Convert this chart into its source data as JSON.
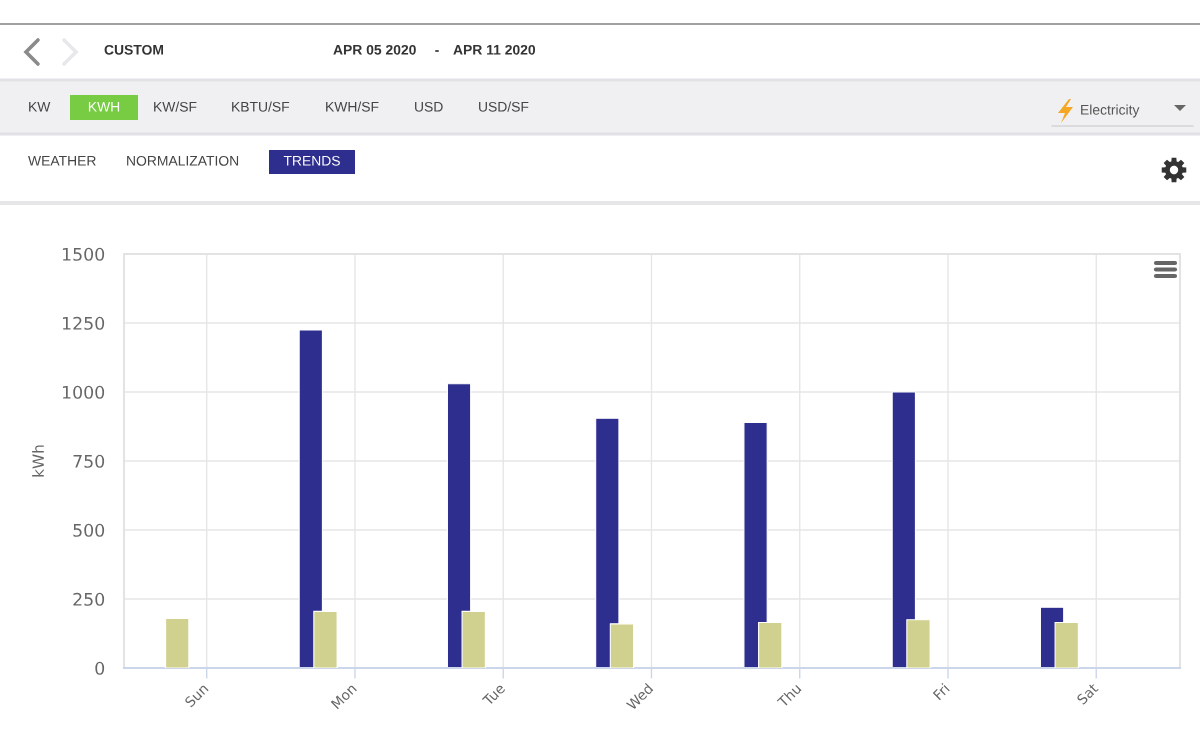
{
  "chart_data": {
    "type": "bar",
    "ylabel": "kWh",
    "categories": [
      "Sun",
      "Mon",
      "Tue",
      "Wed",
      "Thu",
      "Fri",
      "Sat"
    ],
    "series": [
      {
        "color": "#2e2e8f",
        "values": [
          null,
          1225,
          1030,
          905,
          890,
          1000,
          220
        ]
      },
      {
        "color": "#d0d08f",
        "values": [
          180,
          205,
          205,
          160,
          165,
          175,
          165
        ]
      }
    ],
    "ylim": [
      0,
      1500
    ],
    "yticks": [
      0,
      250,
      500,
      750,
      1000,
      1250,
      1500
    ],
    "grid": true,
    "annotations": [
      "CUSTOM",
      "APR 05 2020",
      "-",
      "APR 11 2020",
      "KW",
      "KWH",
      "KW/SF",
      "KBTU/SF",
      "KWH/SF",
      "USD",
      "USD/SF",
      "Electricity",
      "WEATHER",
      "NORMALIZATION",
      "TRENDS"
    ]
  }
}
